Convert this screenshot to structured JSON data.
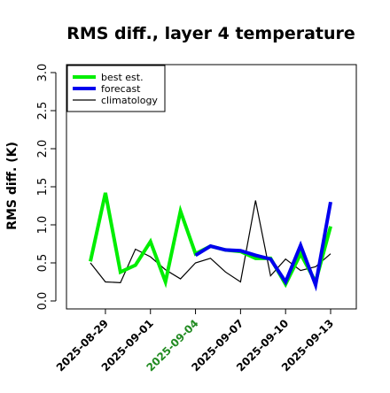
{
  "chart_data": {
    "type": "line",
    "title": "RMS diff., layer 4 temperature",
    "xlabel": "",
    "ylabel": "RMS diff. (K)",
    "ylim": [
      0.0,
      3.0
    ],
    "yticks": [
      "0.0",
      "0.5",
      "1.0",
      "1.5",
      "2.0",
      "2.5",
      "3.0"
    ],
    "xticks": [
      {
        "label": "2025-08-29",
        "color": "#000000"
      },
      {
        "label": "2025-09-01",
        "color": "#000000"
      },
      {
        "label": "2025-09-04",
        "color": "#228B22"
      },
      {
        "label": "2025-09-07",
        "color": "#000000"
      },
      {
        "label": "2025-09-10",
        "color": "#000000"
      },
      {
        "label": "2025-09-13",
        "color": "#000000"
      }
    ],
    "x": [
      "2025-08-28",
      "2025-08-29",
      "2025-08-30",
      "2025-08-31",
      "2025-09-01",
      "2025-09-02",
      "2025-09-03",
      "2025-09-04",
      "2025-09-05",
      "2025-09-06",
      "2025-09-07",
      "2025-09-08",
      "2025-09-09",
      "2025-09-10",
      "2025-09-11",
      "2025-09-12",
      "2025-09-13"
    ],
    "series": [
      {
        "name": "best est.",
        "color": "#00ee00",
        "values": [
          0.52,
          1.42,
          0.38,
          0.47,
          0.78,
          0.25,
          1.18,
          0.62,
          0.72,
          0.67,
          0.65,
          0.56,
          0.56,
          0.22,
          0.62,
          0.25,
          0.98
        ]
      },
      {
        "name": "forecast",
        "color": "#0000ee",
        "values": [
          null,
          null,
          null,
          null,
          null,
          null,
          null,
          0.6,
          0.72,
          0.67,
          0.66,
          0.6,
          0.55,
          0.25,
          0.73,
          0.21,
          1.3
        ]
      },
      {
        "name": "climatology",
        "color": "#000000",
        "values": [
          0.5,
          0.25,
          0.24,
          0.68,
          0.58,
          0.41,
          0.29,
          0.5,
          0.56,
          0.38,
          0.25,
          1.32,
          0.33,
          0.55,
          0.4,
          0.45,
          0.62
        ]
      }
    ],
    "legend_position": "top-left",
    "grid": false
  }
}
